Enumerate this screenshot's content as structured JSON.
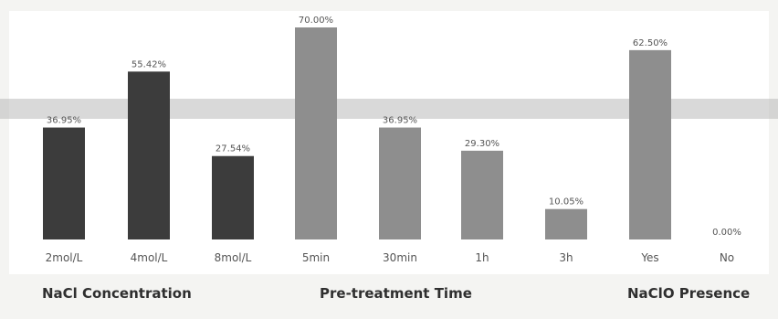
{
  "chart_data": {
    "type": "bar",
    "categories": [
      "2mol/L",
      "4mol/L",
      "8mol/L",
      "5min",
      "30min",
      "1h",
      "3h",
      "Yes",
      "No"
    ],
    "values": [
      36.95,
      55.42,
      27.54,
      70.0,
      36.95,
      29.3,
      10.05,
      62.5,
      0.0
    ],
    "value_labels": [
      "36.95%",
      "55.42%",
      "27.54%",
      "70.00%",
      "36.95%",
      "29.30%",
      "10.05%",
      "62.50%",
      "0.00%"
    ],
    "groups": [
      {
        "name": "NaCl Concentration",
        "categories": [
          "2mol/L",
          "4mol/L",
          "8mol/L"
        ]
      },
      {
        "name": "Pre-treatment Time",
        "categories": [
          "5min",
          "30min",
          "1h",
          "3h"
        ]
      },
      {
        "name": "NaClO Presence",
        "categories": [
          "Yes",
          "No"
        ]
      }
    ],
    "bar_colors": [
      "#3c3c3c",
      "#3c3c3c",
      "#3c3c3c",
      "#8e8e8e",
      "#8e8e8e",
      "#8e8e8e",
      "#8e8e8e",
      "#8e8e8e",
      "#8e8e8e"
    ],
    "ylim": [
      0,
      70
    ],
    "grid": false,
    "legend": "none"
  }
}
